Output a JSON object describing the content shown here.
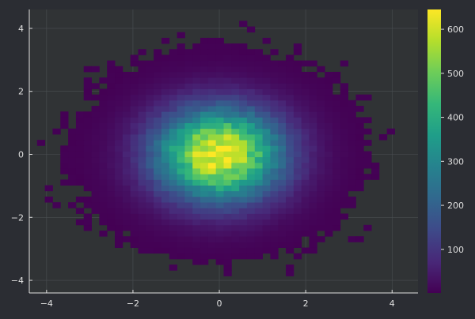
{
  "chart_data": {
    "type": "heatmap",
    "subtype": "2d-histogram",
    "distribution": "bivariate standard normal",
    "bins": {
      "x_count": 50,
      "y_count": 50
    },
    "x_range": [
      -4.4,
      4.6
    ],
    "y_range": [
      -4.4,
      4.6
    ],
    "x_ticks": [
      -4,
      -2,
      0,
      2,
      4
    ],
    "y_ticks": [
      -4,
      -2,
      0,
      2,
      4
    ],
    "x_tick_labels": [
      "−4",
      "−2",
      "0",
      "2",
      "4"
    ],
    "y_tick_labels": [
      "−4",
      "−2",
      "0",
      "2",
      "4"
    ],
    "peak_count": 645,
    "colorbar": {
      "min": 1,
      "max": 645,
      "ticks": [
        100,
        200,
        300,
        400,
        500,
        600
      ],
      "tick_labels": [
        "100",
        "200",
        "300",
        "400",
        "500",
        "600"
      ],
      "colormap": "viridis"
    },
    "grid": true,
    "background": "#2b2d33",
    "plot_background": "#303335",
    "grid_color": "#4a4f52",
    "axis_color": "#e0e0e0"
  }
}
